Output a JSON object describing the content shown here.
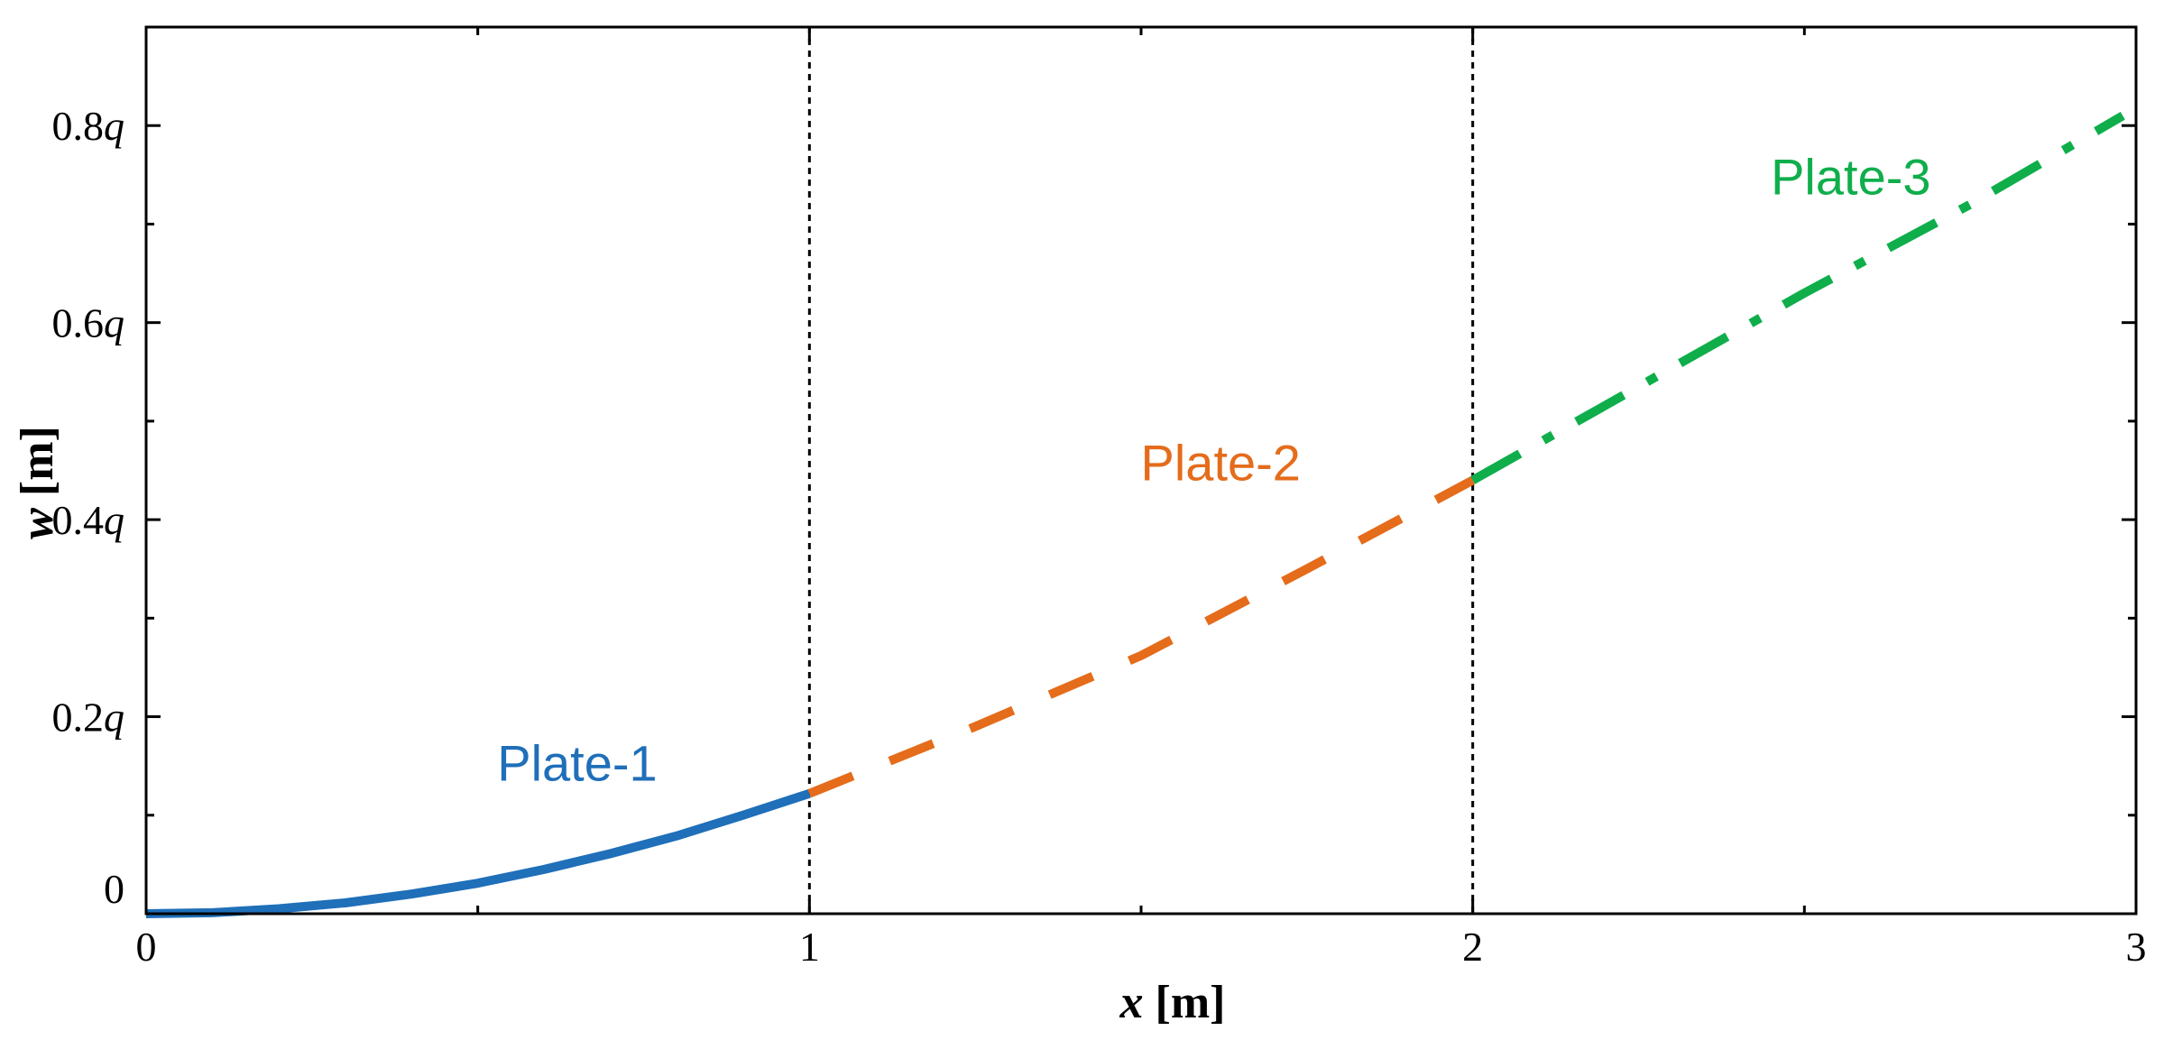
{
  "colors": {
    "axis": "#000000",
    "plate_1": "#1f6fb9",
    "plate_2": "#e46c1b",
    "plate_3": "#0fae4b",
    "divider": "#000000"
  },
  "axes": {
    "xlabel_var": "x",
    "xlabel_unit": " [m]",
    "ylabel_var": "w",
    "ylabel_unit": " [m]"
  },
  "chart_data": {
    "type": "line",
    "xlim": [
      0,
      3
    ],
    "ylim": [
      0,
      0.9
    ],
    "x_ticks": [
      {
        "value": 0,
        "label": "0"
      },
      {
        "value": 1,
        "label": "1"
      },
      {
        "value": 2,
        "label": "2"
      },
      {
        "value": 3,
        "label": "3"
      }
    ],
    "y_ticks": [
      {
        "value": 0,
        "label_num": "0",
        "label_var": ""
      },
      {
        "value": 0.2,
        "label_num": "0.2",
        "label_var": "q"
      },
      {
        "value": 0.4,
        "label_num": "0.4",
        "label_var": "q"
      },
      {
        "value": 0.6,
        "label_num": "0.6",
        "label_var": "q"
      },
      {
        "value": 0.8,
        "label_num": "0.8",
        "label_var": "q"
      }
    ],
    "minor_x_ticks": [
      0.5,
      1.5,
      2.5
    ],
    "minor_y_ticks": [
      0.1,
      0.3,
      0.5,
      0.7
    ],
    "dividers_x": [
      1,
      2
    ],
    "series": [
      {
        "name": "Plate-1",
        "style": "solid",
        "x": [
          0,
          0.1,
          0.2,
          0.3,
          0.4,
          0.5,
          0.6,
          0.7,
          0.8,
          0.9,
          1.0
        ],
        "y": [
          0,
          0.001,
          0.005,
          0.011,
          0.02,
          0.031,
          0.045,
          0.061,
          0.079,
          0.1,
          0.122
        ]
      },
      {
        "name": "Plate-2",
        "style": "dashed",
        "x": [
          1.0,
          1.25,
          1.5,
          1.75,
          2.0
        ],
        "y": [
          0.122,
          0.19,
          0.262,
          0.35,
          0.44
        ]
      },
      {
        "name": "Plate-3",
        "style": "dashdot",
        "x": [
          2.0,
          2.25,
          2.5,
          2.75,
          2.98
        ],
        "y": [
          0.44,
          0.535,
          0.63,
          0.72,
          0.81
        ]
      }
    ],
    "annotations": [
      {
        "text": "Plate-1",
        "x": 0.65,
        "y": 0.135,
        "series": 0
      },
      {
        "text": "Plate-2",
        "x": 1.62,
        "y": 0.44,
        "series": 1
      },
      {
        "text": "Plate-3",
        "x": 2.57,
        "y": 0.73,
        "series": 2
      }
    ]
  }
}
